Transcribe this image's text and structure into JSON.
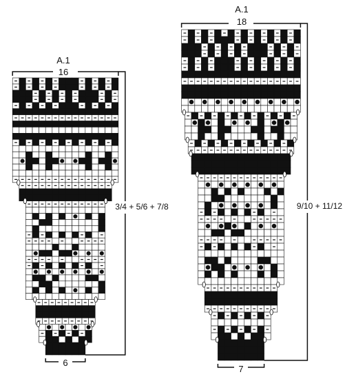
{
  "charts": [
    {
      "id": "left",
      "title": "A.1",
      "top_count": "16",
      "bottom_count": "6",
      "side_label": "3/4 + 5/6 + 7/8",
      "rows": [
        "=#=#=#=###=#=#=#",
        "=#=#=#=###=#=#=#",
        "###=#=#=#=###=#=",
        "###=#=#=#=###=#=",
        "=#=#=#=###=#=#=#",
        "################",
        "================",
        "################",
        "................",
        "################",
        "=#=#=#=#=#=#=#=#",
        "................",
        "..#..#.....#..#.",
        "..##.##...##.##.",
        "..#..#.....#..#.",
        "................",
        "================",
        "==============",
        "##############",
        "##############",
        "============",
        "............",
        ".#.#.#...#.#",
        "..##.......#",
        ".#.........#",
        "=#=#.#.#=#.=",
        "====.=..====",
        "....#..#....",
        "..##.##.....",
        "====.=..====",
        "=#=#.#.#=#.=",
        "............",
        ".##.#....##.",
        "..##.......#",
        ".#.#.#...#.#",
        "............",
        "=========",
        "#########",
        "#########",
        "=========",
        "........",
        "=#=#=#=#",
        ".##.#.##",
        "######",
        "######"
      ]
    },
    {
      "id": "right",
      "title": "A.1",
      "top_count": "18",
      "bottom_count": "7",
      "side_label": "9/10 + 11/12",
      "rows": [
        "=#=#=#=#=#=#=#=#=#",
        "=#=#=###=#=#=#=#=#",
        "###=#=#=#=###=#=#=",
        "###=#=#=#=###=#=#=",
        "=#=#=###=#=#=#=#=#",
        "=#=#=###=#=#=#=#=#",
        "##################",
        "==================",
        "##################",
        "##################",
        "..................",
        "..................",
        "=#=#=#=#=#=#=#=#=",
        "..#..#.....#..#..",
        "..##.##...##.##..",
        "..#..#.....#..#..",
        "=#=#=#=#=#=#=#=#",
        "================",
        "###############",
        "###############",
        "###############",
        "=============",
        ".............",
        "..#.#.#...#.#",
        "..##.......#.",
        ".#.........#.",
        "=#=#.#.#=#.=.",
        "====.=..=====",
        "....#..#.....",
        "..##.##......",
        "====.=..=====",
        "=#=#.#.#=#.=.",
        ".............",
        ".##.#....##..",
        "..##.......#.",
        ".#.#.#...#.#.",
        ".............",
        "===========",
        "###########",
        "###########",
        "===========",
        "=#=#=#=#=",
        ".........",
        "=#=#=#=#=",
        ".##.#.##.",
        "#######",
        "#######",
        "#######"
      ]
    }
  ]
}
